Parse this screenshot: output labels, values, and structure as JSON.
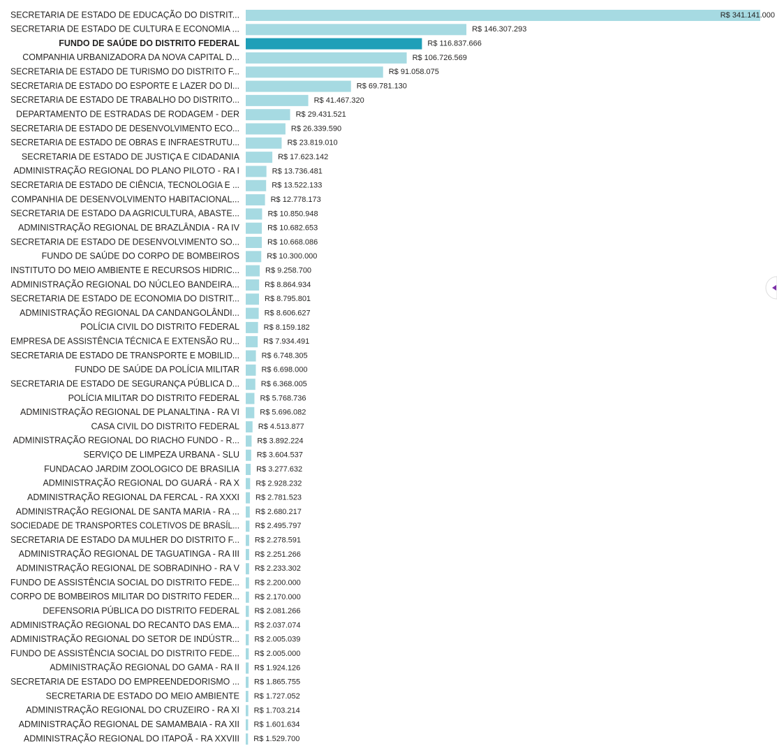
{
  "chart_data": {
    "type": "bar",
    "orientation": "horizontal",
    "color": "#a6dae2",
    "highlight_color": "#1f9fb8",
    "highlight": 2,
    "categories": [
      "SECRETARIA DE ESTADO DE EDUCAÇÃO DO DISTRIT...",
      "SECRETARIA DE ESTADO DE CULTURA E ECONOMIA ...",
      "FUNDO DE SAÚDE DO DISTRITO FEDERAL",
      "COMPANHIA URBANIZADORA DA NOVA CAPITAL D...",
      "SECRETARIA DE ESTADO DE TURISMO DO DISTRITO F...",
      "SECRETARIA DE ESTADO DO ESPORTE E LAZER DO DI...",
      "SECRETARIA DE ESTADO DE TRABALHO DO DISTRITO...",
      "DEPARTAMENTO DE ESTRADAS DE RODAGEM - DER",
      "SECRETARIA DE ESTADO DE DESENVOLVIMENTO ECO...",
      "SECRETARIA DE ESTADO DE OBRAS E INFRAESTRUTU...",
      "SECRETARIA DE ESTADO DE JUSTIÇA E CIDADANIA",
      "ADMINISTRAÇÃO REGIONAL DO PLANO PILOTO - RA I",
      "SECRETARIA DE ESTADO DE CIÊNCIA, TECNOLOGIA E ...",
      "COMPANHIA DE DESENVOLVIMENTO HABITACIONAL...",
      "SECRETARIA DE ESTADO DA AGRICULTURA, ABASTE...",
      "ADMINISTRAÇÃO REGIONAL DE BRAZLÂNDIA - RA IV",
      "SECRETARIA DE ESTADO DE DESENVOLVIMENTO SO...",
      "FUNDO DE SAÚDE DO CORPO DE BOMBEIROS",
      "INSTITUTO DO MEIO AMBIENTE E RECURSOS HIDRIC...",
      "ADMINISTRAÇÃO REGIONAL DO NÚCLEO BANDEIRA...",
      "SECRETARIA DE ESTADO DE ECONOMIA DO DISTRIT...",
      "ADMINISTRAÇÃO REGIONAL DA CANDANGOLÂNDI...",
      "POLÍCIA CIVIL DO DISTRITO FEDERAL",
      "EMPRESA DE ASSISTÊNCIA TÉCNICA E EXTENSÃO RU...",
      "SECRETARIA DE ESTADO DE TRANSPORTE E MOBILID...",
      "FUNDO DE SAÚDE DA POLÍCIA MILITAR",
      "SECRETARIA DE ESTADO DE SEGURANÇA PÚBLICA D...",
      "POLÍCIA MILITAR DO DISTRITO FEDERAL",
      "ADMINISTRAÇÃO REGIONAL DE PLANALTINA - RA VI",
      "CASA CIVIL DO DISTRITO FEDERAL",
      "ADMINISTRAÇÃO REGIONAL DO RIACHO FUNDO - R...",
      "SERVIÇO DE LIMPEZA URBANA - SLU",
      "FUNDACAO JARDIM ZOOLOGICO DE BRASILIA",
      "ADMINISTRAÇÃO REGIONAL DO GUARÁ - RA X",
      "ADMINISTRAÇÃO REGIONAL DA FERCAL - RA XXXI",
      "ADMINISTRAÇÃO REGIONAL DE SANTA MARIA - RA ...",
      "SOCIEDADE DE TRANSPORTES COLETIVOS DE BRASÍL...",
      "SECRETARIA DE ESTADO DA MULHER DO DISTRITO F...",
      "ADMINISTRAÇÃO REGIONAL DE TAGUATINGA - RA III",
      "ADMINISTRAÇÃO REGIONAL DE SOBRADINHO - RA V",
      "FUNDO DE ASSISTÊNCIA SOCIAL DO DISTRITO FEDE...",
      "CORPO DE BOMBEIROS MILITAR DO DISTRITO FEDER...",
      "DEFENSORIA PÚBLICA DO DISTRITO FEDERAL",
      "ADMINISTRAÇÃO REGIONAL DO RECANTO DAS EMA...",
      "ADMINISTRAÇÃO REGIONAL DO SETOR DE INDÚSTR...",
      "FUNDO DE ASSISTÊNCIA SOCIAL DO DISTRITO FEDE...",
      "ADMINISTRAÇÃO REGIONAL DO GAMA - RA II",
      "SECRETARIA DE ESTADO DO EMPREENDEDORISMO ...",
      "SECRETARIA DE ESTADO DO MEIO AMBIENTE",
      "ADMINISTRAÇÃO REGIONAL DO CRUZEIRO - RA XI",
      "ADMINISTRAÇÃO REGIONAL DE SAMAMBAIA - RA XII",
      "ADMINISTRAÇÃO REGIONAL DO ITAPOÃ - RA XXVIII"
    ],
    "values": [
      341141000,
      146307293,
      116837666,
      106726569,
      91058075,
      69781130,
      41467320,
      29431521,
      26339590,
      23819010,
      17623142,
      13736481,
      13522133,
      12778173,
      10850948,
      10682653,
      10668086,
      10300000,
      9258700,
      8864934,
      8795801,
      8606627,
      8159182,
      7934491,
      6748305,
      6698000,
      6368005,
      5768736,
      5696082,
      4513877,
      3892224,
      3604537,
      3277632,
      2928232,
      2781523,
      2680217,
      2495797,
      2278591,
      2251266,
      2233302,
      2200000,
      2170000,
      2081266,
      2037074,
      2005039,
      2005000,
      1924126,
      1865755,
      1727052,
      1703214,
      1601634,
      1529700
    ],
    "value_labels": [
      "R$ 341.141.000",
      "R$ 146.307.293",
      "R$ 116.837.666",
      "R$ 106.726.569",
      "R$ 91.058.075",
      "R$ 69.781.130",
      "R$ 41.467.320",
      "R$ 29.431.521",
      "R$ 26.339.590",
      "R$ 23.819.010",
      "R$ 17.623.142",
      "R$ 13.736.481",
      "R$ 13.522.133",
      "R$ 12.778.173",
      "R$ 10.850.948",
      "R$ 10.682.653",
      "R$ 10.668.086",
      "R$ 10.300.000",
      "R$ 9.258.700",
      "R$ 8.864.934",
      "R$ 8.795.801",
      "R$ 8.606.627",
      "R$ 8.159.182",
      "R$ 7.934.491",
      "R$ 6.748.305",
      "R$ 6.698.000",
      "R$ 6.368.005",
      "R$ 5.768.736",
      "R$ 5.696.082",
      "R$ 4.513.877",
      "R$ 3.892.224",
      "R$ 3.604.537",
      "R$ 3.277.632",
      "R$ 2.928.232",
      "R$ 2.781.523",
      "R$ 2.680.217",
      "R$ 2.495.797",
      "R$ 2.278.591",
      "R$ 2.251.266",
      "R$ 2.233.302",
      "R$ 2.200.000",
      "R$ 2.170.000",
      "R$ 2.081.266",
      "R$ 2.037.074",
      "R$ 2.005.039",
      "R$ 2.005.000",
      "R$ 1.924.126",
      "R$ 1.865.755",
      "R$ 1.727.052",
      "R$ 1.703.214",
      "R$ 1.601.634",
      "R$ 1.529.700"
    ]
  }
}
